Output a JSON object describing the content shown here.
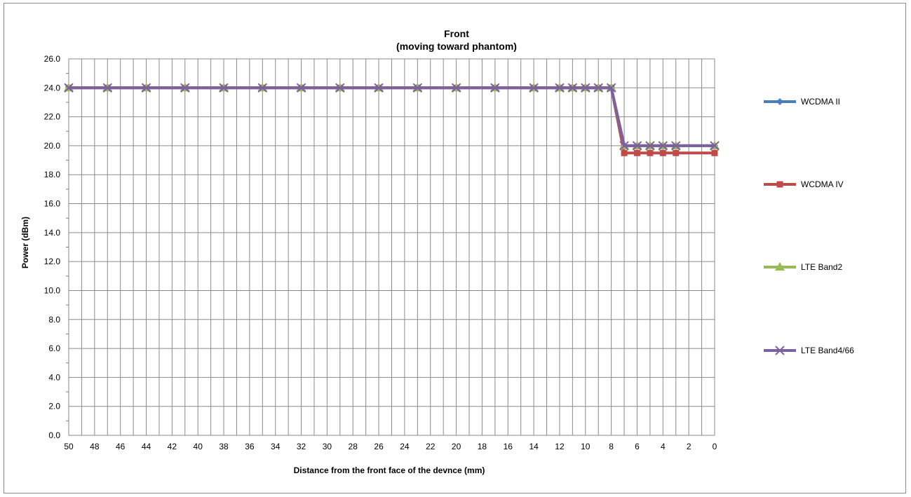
{
  "chart_data": {
    "type": "line",
    "title": "Front",
    "subtitle": "(moving toward phantom)",
    "xlabel": "Distance from the front face of the devnce (mm)",
    "ylabel": "Power (dBm)",
    "x_axis": {
      "reversed": true,
      "xlim": [
        0,
        50
      ],
      "ticks": [
        50,
        48,
        46,
        44,
        42,
        40,
        38,
        36,
        34,
        32,
        30,
        28,
        26,
        24,
        22,
        20,
        18,
        16,
        14,
        12,
        10,
        8,
        6,
        4,
        2,
        0
      ]
    },
    "y_axis": {
      "ylim": [
        0,
        26
      ],
      "ticks": [
        "0.0",
        "2.0",
        "4.0",
        "6.0",
        "8.0",
        "10.0",
        "12.0",
        "14.0",
        "16.0",
        "18.0",
        "20.0",
        "22.0",
        "24.0",
        "26.0"
      ]
    },
    "grid": true,
    "legend_placement": "right",
    "x": [
      50,
      47,
      44,
      41,
      38,
      35,
      32,
      29,
      26,
      23,
      20,
      17,
      14,
      12,
      11,
      10,
      9,
      8,
      7,
      6,
      5,
      4,
      3,
      0
    ],
    "series": [
      {
        "name": "WCDMA II",
        "color": "#4a7ebb",
        "marker": "diamond",
        "values": [
          24,
          24,
          24,
          24,
          24,
          24,
          24,
          24,
          24,
          24,
          24,
          24,
          24,
          24,
          24,
          24,
          24,
          24,
          20,
          20,
          20,
          20,
          20,
          20
        ]
      },
      {
        "name": "WCDMA IV",
        "color": "#be4b48",
        "marker": "square",
        "values": [
          24,
          24,
          24,
          24,
          24,
          24,
          24,
          24,
          24,
          24,
          24,
          24,
          24,
          24,
          24,
          24,
          24,
          24,
          19.5,
          19.5,
          19.5,
          19.5,
          19.5,
          19.5
        ]
      },
      {
        "name": "LTE Band2",
        "color": "#98b954",
        "marker": "triangle",
        "values": [
          24,
          24,
          24,
          24,
          24,
          24,
          24,
          24,
          24,
          24,
          24,
          24,
          24,
          24,
          24,
          24,
          24,
          24,
          20,
          20,
          20,
          20,
          20,
          20
        ]
      },
      {
        "name": "LTE Band4/66",
        "color": "#7d60a0",
        "marker": "x",
        "values": [
          24,
          24,
          24,
          24,
          24,
          24,
          24,
          24,
          24,
          24,
          24,
          24,
          24,
          24,
          24,
          24,
          24,
          24,
          20,
          20,
          20,
          20,
          20,
          20
        ]
      }
    ]
  }
}
